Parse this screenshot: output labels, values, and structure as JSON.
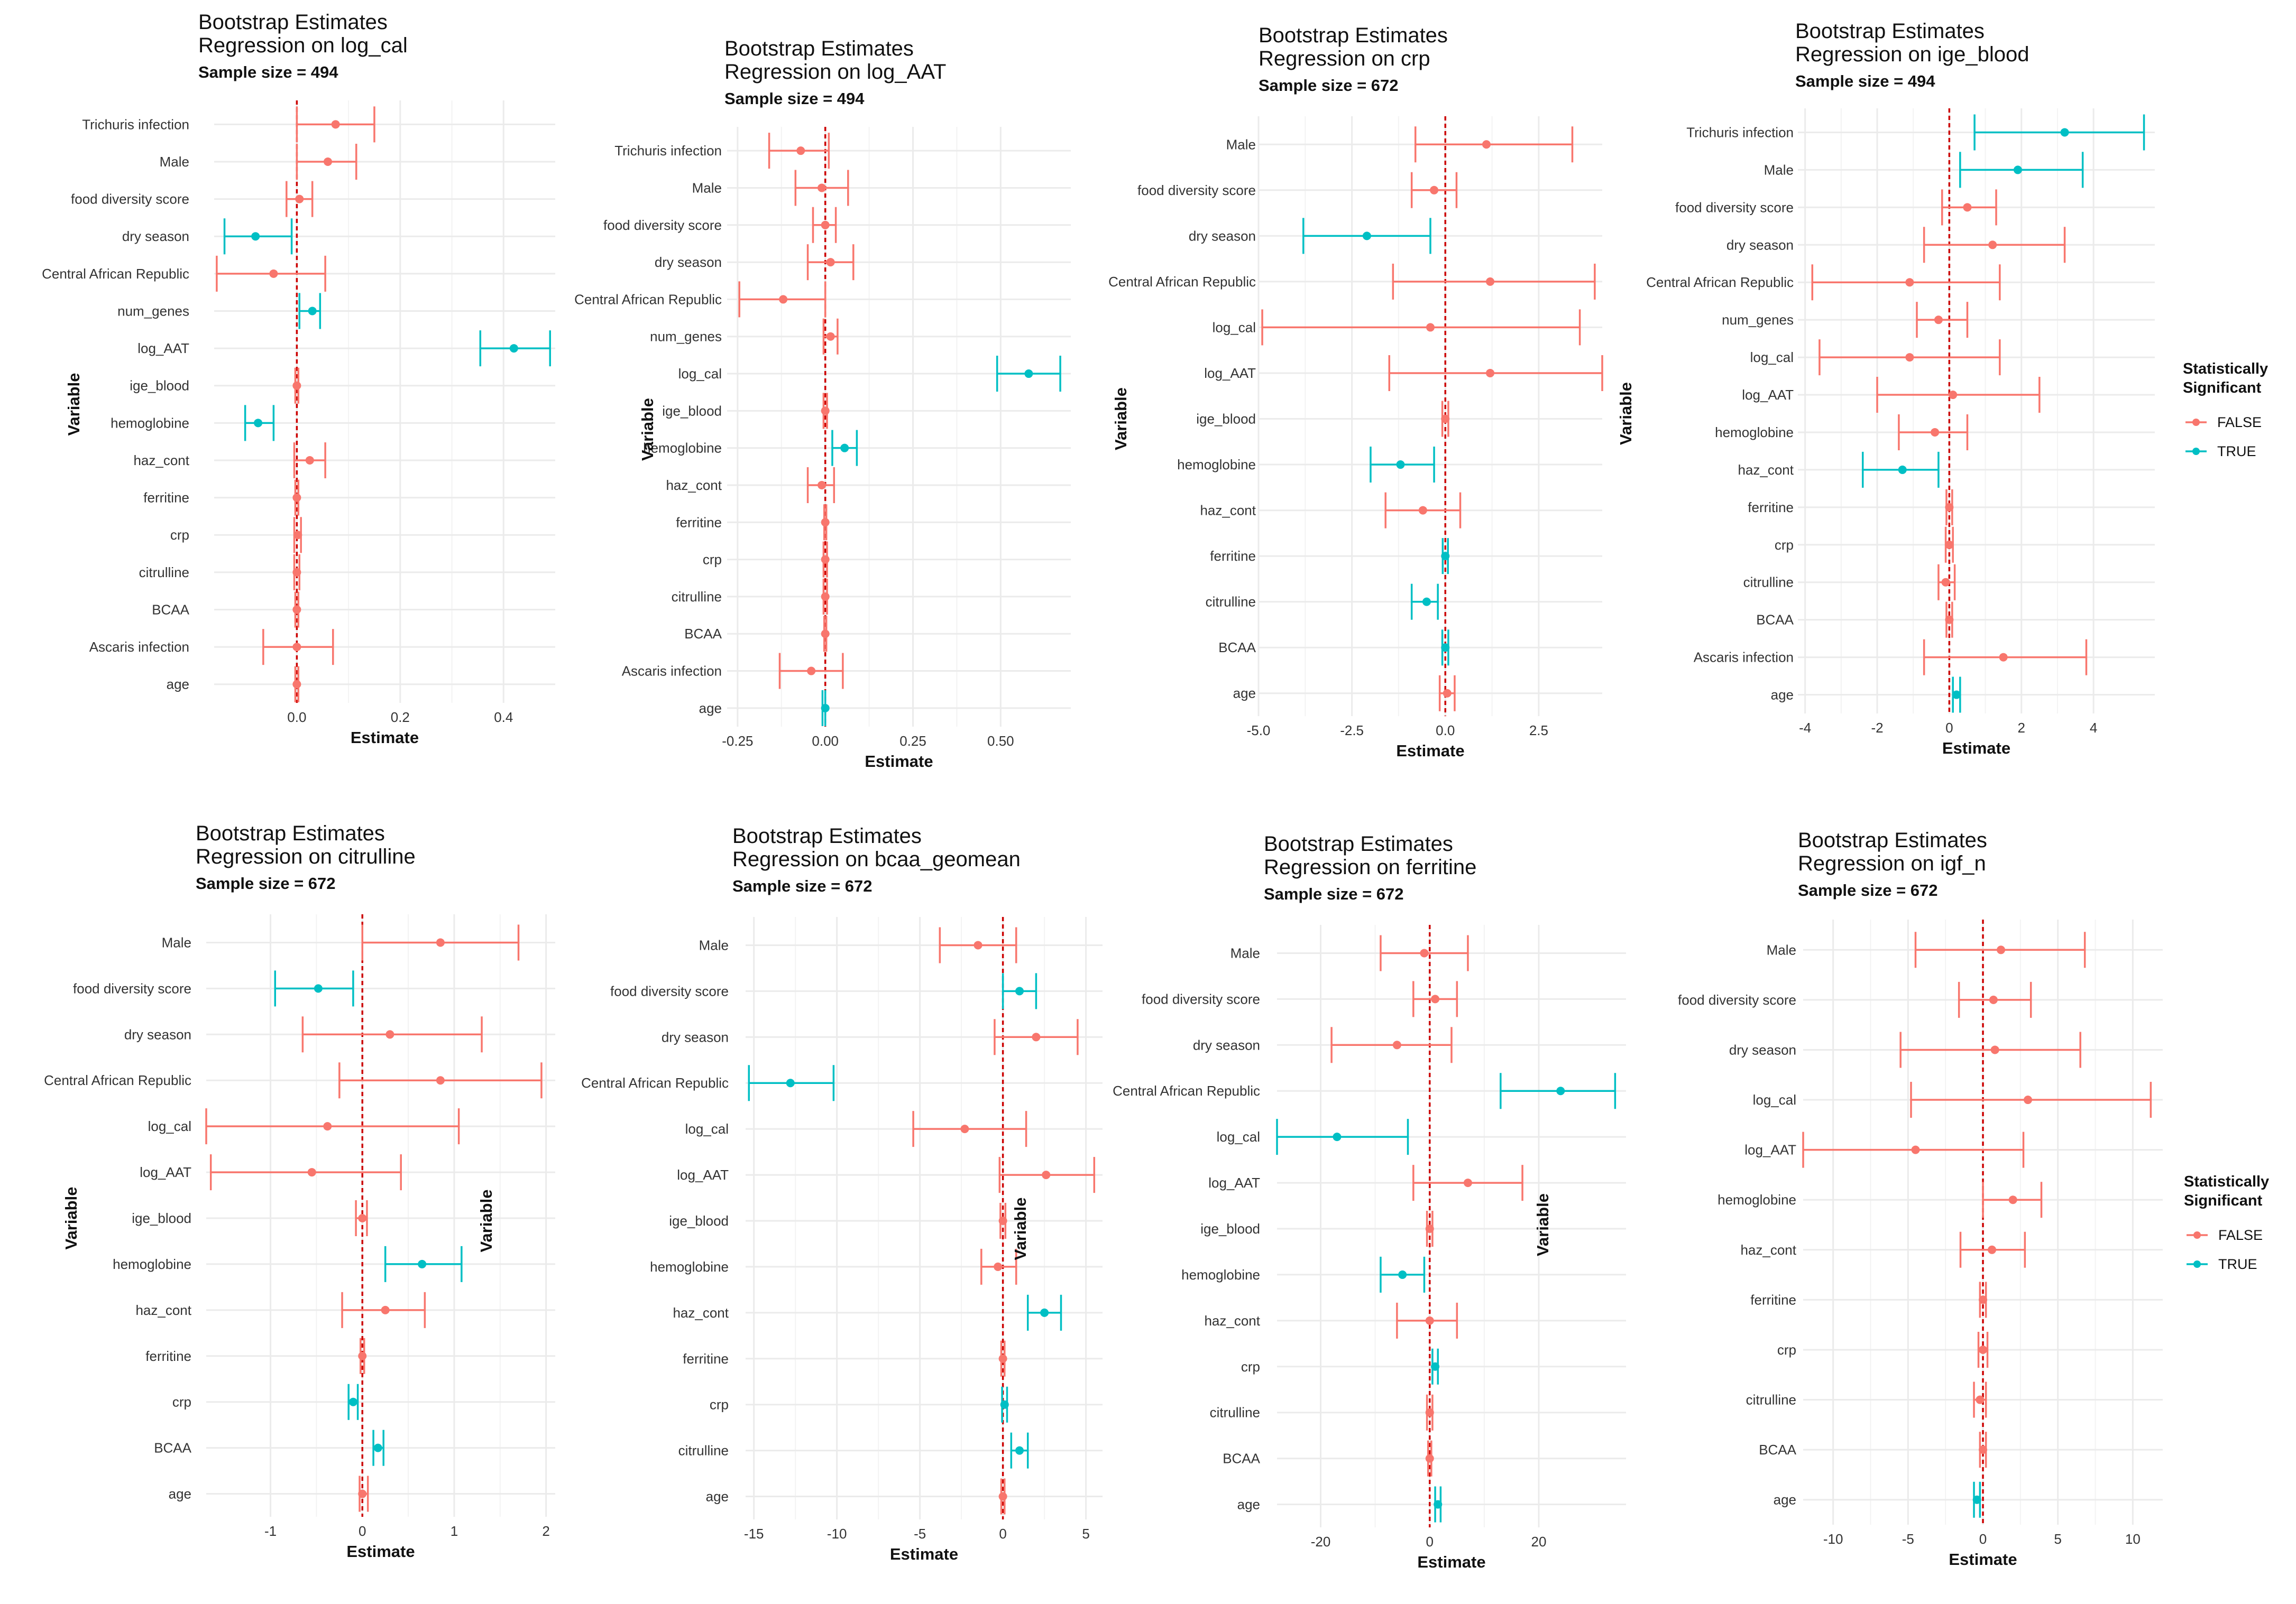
{
  "colors": {
    "false": "#F8766D",
    "true": "#00BFC4",
    "zero_line": "#CC0000",
    "grid": "#EBEBEB"
  },
  "legend": {
    "title_line1": "Statistically",
    "title_line2": "Significant",
    "items": [
      "FALSE",
      "TRUE"
    ]
  },
  "chart_data": [
    {
      "type": "forest",
      "title_line1": "Bootstrap Estimates",
      "title_line2": "Regression on log_cal",
      "subtitle": "Sample size = 494",
      "xlabel": "Estimate",
      "ylabel": "Variable",
      "xlim": [
        -0.16,
        0.5
      ],
      "ticks": [
        0.0,
        0.2,
        0.4
      ],
      "tick_labels": [
        "0.0",
        "0.2",
        "0.4"
      ],
      "variables": [
        "Trichuris infection",
        "Male",
        "food diversity score",
        "dry season",
        "Central African Republic",
        "num_genes",
        "log_AAT",
        "ige_blood",
        "hemoglobine",
        "haz_cont",
        "ferritine",
        "crp",
        "citrulline",
        "BCAA",
        "Ascaris infection",
        "age"
      ],
      "estimate": [
        0.075,
        0.06,
        0.005,
        -0.08,
        -0.045,
        0.03,
        0.42,
        0.0,
        -0.075,
        0.025,
        0.0,
        0.002,
        0.0,
        0.0,
        0.0,
        0.0
      ],
      "lower": [
        0.0,
        0.0,
        -0.02,
        -0.14,
        -0.155,
        0.005,
        0.355,
        -0.003,
        -0.1,
        -0.005,
        -0.003,
        -0.005,
        -0.005,
        -0.003,
        -0.065,
        -0.003
      ],
      "upper": [
        0.15,
        0.115,
        0.03,
        -0.01,
        0.055,
        0.045,
        0.49,
        0.003,
        -0.045,
        0.055,
        0.003,
        0.008,
        0.005,
        0.003,
        0.07,
        0.003
      ],
      "significant": [
        false,
        false,
        false,
        true,
        false,
        true,
        true,
        false,
        true,
        false,
        false,
        false,
        false,
        false,
        false,
        false
      ]
    },
    {
      "type": "forest",
      "title_line1": "Bootstrap Estimates",
      "title_line2": "Regression on log_AAT",
      "subtitle": "Sample size = 494",
      "xlabel": "Estimate",
      "ylabel": "Variable",
      "xlim": [
        -0.28,
        0.7
      ],
      "ticks": [
        -0.25,
        0.0,
        0.25,
        0.5
      ],
      "tick_labels": [
        "-0.25",
        "0.00",
        "0.25",
        "0.50"
      ],
      "variables": [
        "Trichuris infection",
        "Male",
        "food diversity score",
        "dry season",
        "Central African Republic",
        "num_genes",
        "log_cal",
        "ige_blood",
        "hemoglobine",
        "haz_cont",
        "ferritine",
        "crp",
        "citrulline",
        "BCAA",
        "Ascaris infection",
        "age"
      ],
      "estimate": [
        -0.07,
        -0.01,
        0.0,
        0.015,
        -0.12,
        0.015,
        0.58,
        0.0,
        0.055,
        -0.01,
        0.0,
        0.0,
        0.0,
        0.0,
        -0.04,
        0.0
      ],
      "lower": [
        -0.16,
        -0.085,
        -0.035,
        -0.05,
        -0.245,
        -0.005,
        0.49,
        -0.005,
        0.02,
        -0.05,
        -0.003,
        -0.005,
        -0.005,
        -0.003,
        -0.13,
        -0.008
      ],
      "upper": [
        0.01,
        0.065,
        0.03,
        0.08,
        0.0,
        0.035,
        0.67,
        0.005,
        0.09,
        0.025,
        0.003,
        0.005,
        0.005,
        0.003,
        0.05,
        0.0
      ],
      "significant": [
        false,
        false,
        false,
        false,
        false,
        false,
        true,
        false,
        true,
        false,
        false,
        false,
        false,
        false,
        false,
        true
      ]
    },
    {
      "type": "forest",
      "title_line1": "Bootstrap Estimates",
      "title_line2": "Regression on crp",
      "subtitle": "Sample size = 672",
      "xlabel": "Estimate",
      "ylabel": "Variable",
      "xlim": [
        -5.0,
        4.2
      ],
      "ticks": [
        -5.0,
        -2.5,
        0.0,
        2.5
      ],
      "tick_labels": [
        "-5.0",
        "-2.5",
        "0.0",
        "2.5"
      ],
      "variables": [
        "Male",
        "food diversity score",
        "dry season",
        "Central African Republic",
        "log_cal",
        "log_AAT",
        "ige_blood",
        "hemoglobine",
        "haz_cont",
        "ferritine",
        "citrulline",
        "BCAA",
        "age"
      ],
      "estimate": [
        1.1,
        -0.3,
        -2.1,
        1.2,
        -0.4,
        1.2,
        0.0,
        -1.2,
        -0.6,
        0.0,
        -0.5,
        0.0,
        0.05
      ],
      "lower": [
        -0.8,
        -0.9,
        -3.8,
        -1.4,
        -4.9,
        -1.5,
        -0.08,
        -2.0,
        -1.6,
        -0.07,
        -0.9,
        -0.08,
        -0.15
      ],
      "upper": [
        3.4,
        0.3,
        -0.4,
        4.0,
        3.6,
        4.2,
        0.08,
        -0.3,
        0.4,
        0.07,
        -0.2,
        0.08,
        0.25
      ],
      "significant": [
        false,
        false,
        true,
        false,
        false,
        false,
        false,
        true,
        false,
        true,
        true,
        true,
        false
      ]
    },
    {
      "type": "forest",
      "title_line1": "Bootstrap Estimates",
      "title_line2": "Regression on ige_blood",
      "subtitle": "Sample size = 494",
      "xlabel": "Estimate",
      "ylabel": "Variable",
      "xlim": [
        -4.2,
        5.7
      ],
      "ticks": [
        -4,
        -2,
        0,
        2,
        4
      ],
      "tick_labels": [
        "-4",
        "-2",
        "0",
        "2",
        "4"
      ],
      "variables": [
        "Trichuris infection",
        "Male",
        "food diversity score",
        "dry season",
        "Central African Republic",
        "num_genes",
        "log_cal",
        "log_AAT",
        "hemoglobine",
        "haz_cont",
        "ferritine",
        "crp",
        "citrulline",
        "BCAA",
        "Ascaris infection",
        "age"
      ],
      "estimate": [
        3.2,
        1.9,
        0.5,
        1.2,
        -1.1,
        -0.3,
        -1.1,
        0.1,
        -0.4,
        -1.3,
        0.0,
        0.0,
        -0.1,
        0.0,
        1.5,
        0.2
      ],
      "lower": [
        0.7,
        0.3,
        -0.2,
        -0.7,
        -3.8,
        -0.9,
        -3.6,
        -2.0,
        -1.4,
        -2.4,
        -0.08,
        -0.1,
        -0.3,
        -0.08,
        -0.7,
        0.1
      ],
      "upper": [
        5.4,
        3.7,
        1.3,
        3.2,
        1.4,
        0.5,
        1.4,
        2.5,
        0.5,
        -0.3,
        0.08,
        0.1,
        0.15,
        0.08,
        3.8,
        0.3
      ],
      "significant": [
        true,
        true,
        false,
        false,
        false,
        false,
        false,
        false,
        false,
        true,
        false,
        false,
        false,
        false,
        false,
        true
      ]
    },
    {
      "type": "forest",
      "title_line1": "Bootstrap Estimates",
      "title_line2": "Regression on citrulline",
      "subtitle": "Sample size = 672",
      "xlabel": "Estimate",
      "ylabel": "Variable",
      "xlim": [
        -1.7,
        2.1
      ],
      "ticks": [
        -1,
        0,
        1,
        2
      ],
      "tick_labels": [
        "-1",
        "0",
        "1",
        "2"
      ],
      "variables": [
        "Male",
        "food diversity score",
        "dry season",
        "Central African Republic",
        "log_cal",
        "log_AAT",
        "ige_blood",
        "hemoglobine",
        "haz_cont",
        "ferritine",
        "crp",
        "BCAA",
        "age"
      ],
      "estimate": [
        0.85,
        -0.48,
        0.3,
        0.85,
        -0.38,
        -0.55,
        0.0,
        0.65,
        0.25,
        0.0,
        -0.1,
        0.17,
        0.0
      ],
      "lower": [
        0.0,
        -0.95,
        -0.65,
        -0.25,
        -1.7,
        -1.65,
        -0.07,
        0.25,
        -0.22,
        -0.02,
        -0.15,
        0.12,
        -0.03
      ],
      "upper": [
        1.7,
        -0.1,
        1.3,
        1.95,
        1.05,
        0.42,
        0.05,
        1.08,
        0.68,
        0.02,
        -0.05,
        0.23,
        0.06
      ],
      "significant": [
        false,
        true,
        false,
        false,
        false,
        false,
        false,
        true,
        false,
        false,
        true,
        true,
        false
      ]
    },
    {
      "type": "forest",
      "title_line1": "Bootstrap Estimates",
      "title_line2": "Regression on bcaa_geomean",
      "subtitle": "Sample size = 672",
      "xlabel": "Estimate",
      "ylabel": "Variable",
      "xlim": [
        -15.5,
        6.0
      ],
      "ticks": [
        -15,
        -10,
        -5,
        0,
        5
      ],
      "tick_labels": [
        "-15",
        "-10",
        "-5",
        "0",
        "5"
      ],
      "variables": [
        "Male",
        "food diversity score",
        "dry season",
        "Central African Republic",
        "log_cal",
        "log_AAT",
        "ige_blood",
        "hemoglobine",
        "haz_cont",
        "ferritine",
        "crp",
        "citrulline",
        "age"
      ],
      "estimate": [
        -1.5,
        1.0,
        2.0,
        -12.8,
        -2.3,
        2.6,
        0.0,
        -0.3,
        2.5,
        0.0,
        0.1,
        1.0,
        0.0
      ],
      "lower": [
        -3.8,
        0.0,
        -0.5,
        -15.3,
        -5.4,
        -0.2,
        -0.15,
        -1.3,
        1.5,
        -0.1,
        -0.05,
        0.5,
        -0.1
      ],
      "upper": [
        0.8,
        2.0,
        4.5,
        -10.2,
        1.4,
        5.5,
        0.15,
        0.8,
        3.5,
        0.1,
        0.25,
        1.5,
        0.1
      ],
      "significant": [
        false,
        true,
        false,
        true,
        false,
        false,
        false,
        false,
        true,
        false,
        true,
        true,
        false
      ]
    },
    {
      "type": "forest",
      "title_line1": "Bootstrap Estimates",
      "title_line2": "Regression on ferritine",
      "subtitle": "Sample size = 672",
      "xlabel": "Estimate",
      "ylabel": "Variable",
      "xlim": [
        -28.0,
        36.0
      ],
      "ticks": [
        -20,
        0,
        20
      ],
      "tick_labels": [
        "-20",
        "0",
        "20"
      ],
      "variables": [
        "Male",
        "food diversity score",
        "dry season",
        "Central African Republic",
        "log_cal",
        "log_AAT",
        "ige_blood",
        "hemoglobine",
        "haz_cont",
        "crp",
        "citrulline",
        "BCAA",
        "age"
      ],
      "estimate": [
        -1.0,
        1.0,
        -6.0,
        24.0,
        -17.0,
        7.0,
        0.0,
        -5.0,
        0.0,
        1.0,
        0.0,
        0.0,
        1.5
      ],
      "lower": [
        -9.0,
        -3.0,
        -18.0,
        13.0,
        -28.0,
        -3.0,
        -0.5,
        -9.0,
        -6.0,
        0.5,
        -0.5,
        -0.3,
        1.0
      ],
      "upper": [
        7.0,
        5.0,
        4.0,
        34.0,
        -4.0,
        17.0,
        0.5,
        -1.0,
        5.0,
        1.5,
        0.5,
        0.3,
        2.0
      ],
      "significant": [
        false,
        false,
        false,
        true,
        true,
        false,
        false,
        true,
        false,
        true,
        false,
        false,
        true
      ]
    },
    {
      "type": "forest",
      "title_line1": "Bootstrap Estimates",
      "title_line2": "Regression on igf_n",
      "subtitle": "Sample size = 672",
      "xlabel": "Estimate",
      "ylabel": "Variable",
      "xlim": [
        -12.0,
        12.0
      ],
      "ticks": [
        -10,
        -5,
        0,
        5,
        10
      ],
      "tick_labels": [
        "-10",
        "-5",
        "0",
        "5",
        "10"
      ],
      "variables": [
        "Male",
        "food diversity score",
        "dry season",
        "log_cal",
        "log_AAT",
        "hemoglobine",
        "haz_cont",
        "ferritine",
        "crp",
        "citrulline",
        "BCAA",
        "age"
      ],
      "estimate": [
        1.2,
        0.7,
        0.8,
        3.0,
        -4.5,
        2.0,
        0.6,
        0.0,
        0.0,
        -0.2,
        0.0,
        -0.4
      ],
      "lower": [
        -4.5,
        -1.6,
        -5.5,
        -4.8,
        -12.0,
        0.0,
        -1.5,
        -0.2,
        -0.3,
        -0.6,
        -0.2,
        -0.6
      ],
      "upper": [
        6.8,
        3.2,
        6.5,
        11.2,
        2.7,
        3.9,
        2.8,
        0.2,
        0.3,
        0.2,
        0.2,
        -0.2
      ],
      "significant": [
        false,
        false,
        false,
        false,
        false,
        false,
        false,
        false,
        false,
        false,
        false,
        true
      ]
    }
  ]
}
